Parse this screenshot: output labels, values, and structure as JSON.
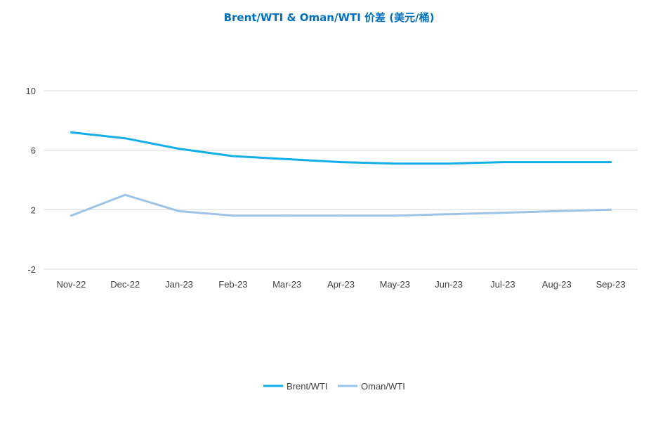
{
  "chart_data": {
    "type": "line",
    "title": "Brent/WTI & Oman/WTI 价差 (美元/桶)",
    "categories": [
      "Nov-22",
      "Dec-22",
      "Jan-23",
      "Feb-23",
      "Mar-23",
      "Apr-23",
      "May-23",
      "Jun-23",
      "Jul-23",
      "Aug-23",
      "Sep-23"
    ],
    "yticks": [
      10,
      6,
      2,
      -2
    ],
    "ylim": [
      -2,
      10
    ],
    "grid": true,
    "legend_position": "bottom",
    "series": [
      {
        "name": "Brent/WTI",
        "color": "#12AEE8",
        "values": [
          7.2,
          6.8,
          6.1,
          5.6,
          5.4,
          5.2,
          5.1,
          5.1,
          5.2,
          5.2,
          5.2
        ]
      },
      {
        "name": "Oman/WTI",
        "color": "#9DC3E6",
        "values": [
          1.6,
          3.0,
          1.9,
          1.6,
          1.6,
          1.6,
          1.6,
          1.7,
          1.8,
          1.9,
          2.0
        ]
      }
    ]
  }
}
